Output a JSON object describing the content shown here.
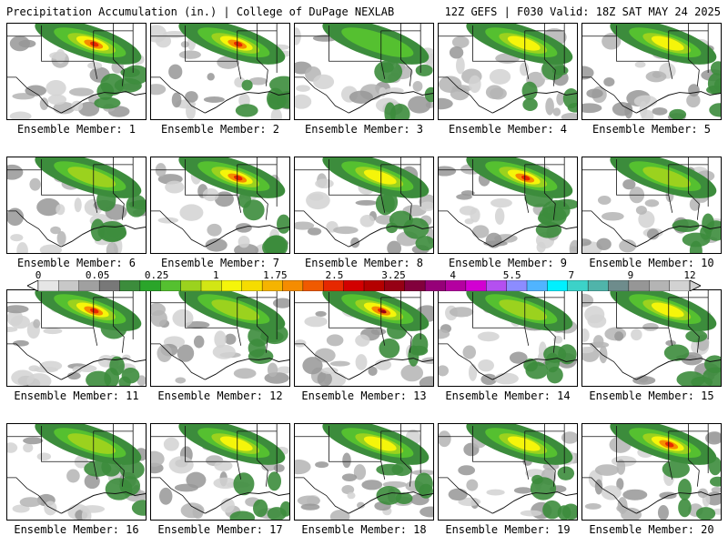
{
  "header": {
    "title": "Precipitation Accumulation (in.) | College of DuPage NEXLAB",
    "valid": "12Z GEFS | F030 Valid: 18Z SAT MAY 24 2025"
  },
  "colorbar": {
    "ticks": [
      "0",
      "0.05",
      "0.25",
      "1",
      "1.75",
      "2.5",
      "3.25",
      "4",
      "5.5",
      "7",
      "9",
      "12"
    ],
    "colors": [
      "#e6e6e6",
      "#c8c8c8",
      "#a0a0a0",
      "#787878",
      "#3c8c3c",
      "#2aa52a",
      "#55c030",
      "#9bd21e",
      "#d2e614",
      "#f5f50a",
      "#f5dc00",
      "#f5b400",
      "#f58c00",
      "#f05a00",
      "#e62800",
      "#d20000",
      "#b40000",
      "#960014",
      "#82003c",
      "#960078",
      "#b400a0",
      "#d200d2",
      "#b450f0",
      "#8c8cff",
      "#50b4ff",
      "#00f0ff",
      "#3cd2c8",
      "#50b4aa",
      "#6e8c8c",
      "#969696",
      "#b4b4b4",
      "#d2d2d2"
    ]
  },
  "members": [
    {
      "label": "Ensemble Member: 1",
      "intensity": 4
    },
    {
      "label": "Ensemble Member: 2",
      "intensity": 4
    },
    {
      "label": "Ensemble Member: 3",
      "intensity": 1
    },
    {
      "label": "Ensemble Member: 4",
      "intensity": 3
    },
    {
      "label": "Ensemble Member: 5",
      "intensity": 3
    },
    {
      "label": "Ensemble Member: 6",
      "intensity": 2
    },
    {
      "label": "Ensemble Member: 7",
      "intensity": 4
    },
    {
      "label": "Ensemble Member: 8",
      "intensity": 3
    },
    {
      "label": "Ensemble Member: 9",
      "intensity": 4
    },
    {
      "label": "Ensemble Member: 10",
      "intensity": 2
    },
    {
      "label": "Ensemble Member: 11",
      "intensity": 4
    },
    {
      "label": "Ensemble Member: 12",
      "intensity": 2
    },
    {
      "label": "Ensemble Member: 13",
      "intensity": 5
    },
    {
      "label": "Ensemble Member: 14",
      "intensity": 2
    },
    {
      "label": "Ensemble Member: 15",
      "intensity": 3
    },
    {
      "label": "Ensemble Member: 16",
      "intensity": 2
    },
    {
      "label": "Ensemble Member: 17",
      "intensity": 3
    },
    {
      "label": "Ensemble Member: 18",
      "intensity": 3
    },
    {
      "label": "Ensemble Member: 19",
      "intensity": 3
    },
    {
      "label": "Ensemble Member: 20",
      "intensity": 4
    }
  ]
}
